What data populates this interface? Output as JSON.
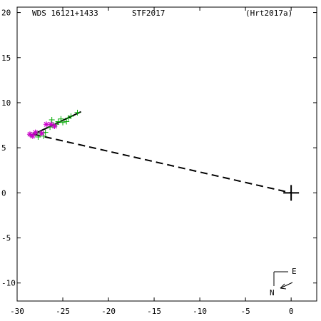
{
  "header": {
    "star_id": "WDS 16121+1433",
    "discoverer": "STF2017",
    "reference": "(Hrt2017a)"
  },
  "compass": {
    "east_label": "E",
    "north_label": "N"
  },
  "chart_data": {
    "type": "scatter",
    "xlim": [
      -30,
      2.8
    ],
    "ylim": [
      -12,
      20.6
    ],
    "x_reversed": false,
    "x_ticks": [
      -30,
      -25,
      -20,
      -15,
      -10,
      -5,
      0
    ],
    "y_ticks": [
      -10,
      -5,
      0,
      5,
      10,
      15,
      20
    ],
    "x_tick_labels": [
      "-30",
      "-25",
      "-20",
      "-15",
      "-10",
      "-5",
      "0"
    ],
    "y_tick_labels": [
      "-10",
      "-5",
      "0",
      "5",
      "10",
      "15",
      "20"
    ],
    "grid": false,
    "colors": {
      "observations": "#00aa00",
      "highlighted": "#cc00cc",
      "orbit": "#000000",
      "primary": "#000000"
    },
    "primary": {
      "x": 0,
      "y": 0
    },
    "orbit_segment": [
      [
        -28.4,
        6.4
      ],
      [
        -23,
        9.0
      ]
    ],
    "dashed_line": [
      [
        -28.2,
        6.5
      ],
      [
        0,
        0
      ]
    ],
    "series": [
      {
        "marker": "plus",
        "values": [
          [
            -28.5,
            6.4
          ],
          [
            -28.0,
            6.6
          ],
          [
            -27.7,
            6.2
          ],
          [
            -27.5,
            6.6
          ],
          [
            -27.1,
            6.3
          ],
          [
            -26.9,
            6.7
          ],
          [
            -26.4,
            7.3
          ],
          [
            -26.2,
            8.1
          ],
          [
            -26.0,
            7.5
          ],
          [
            -25.7,
            7.6
          ],
          [
            -25.5,
            7.9
          ],
          [
            -25.2,
            8.2
          ],
          [
            -25.0,
            7.8
          ],
          [
            -24.6,
            7.9
          ],
          [
            -24.4,
            8.3
          ],
          [
            -24.1,
            8.5
          ],
          [
            -23.4,
            8.9
          ]
        ]
      },
      {
        "marker": "star",
        "values": [
          [
            -28.6,
            6.5
          ],
          [
            -28.3,
            6.3
          ],
          [
            -28.0,
            6.7
          ],
          [
            -27.3,
            6.6
          ],
          [
            -26.8,
            7.6
          ],
          [
            -26.3,
            7.6
          ],
          [
            -25.9,
            7.4
          ]
        ]
      }
    ]
  }
}
